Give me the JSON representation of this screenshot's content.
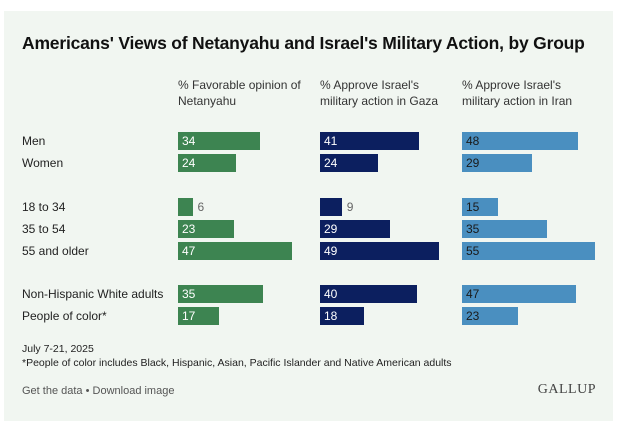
{
  "chart_data": {
    "type": "bar",
    "orientation": "horizontal",
    "title": "Americans' Views of Netanyahu and Israel's Military Action, by Group",
    "categories": [
      "Men",
      "Women",
      "18 to 34",
      "35 to 54",
      "55 and older",
      "Non-Hispanic White adults",
      "People of color*"
    ],
    "groups": [
      [
        0,
        1
      ],
      [
        2,
        3,
        4
      ],
      [
        5,
        6
      ]
    ],
    "series": [
      {
        "name": "% Favorable opinion of Netanyahu",
        "color": "#3d8451",
        "label_color": "#ffffff",
        "values": [
          34,
          24,
          6,
          23,
          47,
          35,
          17
        ]
      },
      {
        "name": "% Approve Israel's military action in Gaza",
        "color": "#0c1f5f",
        "label_color": "#ffffff",
        "values": [
          41,
          24,
          9,
          29,
          49,
          40,
          18
        ]
      },
      {
        "name": "% Approve Israel's military action in Iran",
        "color": "#4a8fc0",
        "label_color": "#1a1a1a",
        "values": [
          48,
          29,
          15,
          35,
          55,
          47,
          23
        ]
      }
    ],
    "xlim": [
      0,
      60
    ],
    "grid": false,
    "legend": "column-headers-top"
  },
  "footnotes": {
    "dates": "July 7-21, 2025",
    "note": "*People of color includes Black, Hispanic, Asian, Pacific Islander and Native American adults"
  },
  "links": {
    "get_data": "Get the data",
    "separator": " • ",
    "download": "Download image"
  },
  "brand": "GALLUP"
}
